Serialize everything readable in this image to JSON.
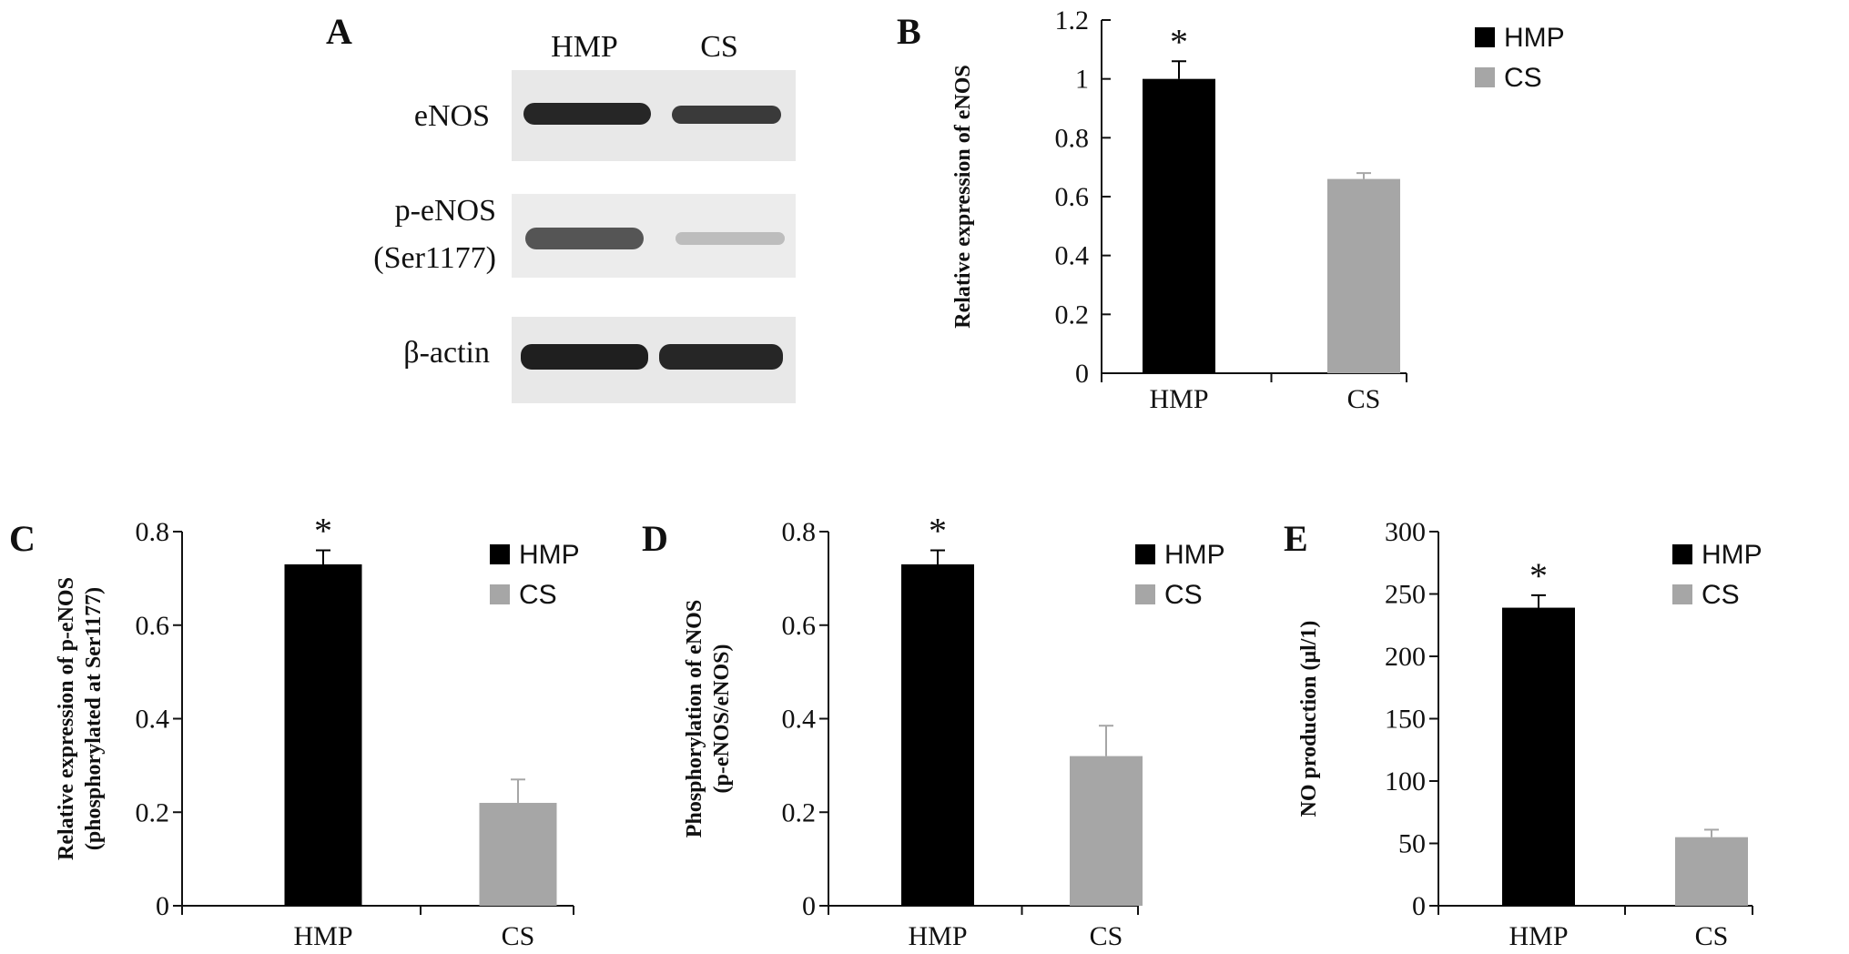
{
  "colors": {
    "hmp": "#000000",
    "cs": "#a6a6a6"
  },
  "panel_a": {
    "letter": "A",
    "lane_labels": [
      "HMP",
      "CS"
    ],
    "row_labels": [
      "eNOS",
      "p-eNOS",
      "(Ser1177)",
      "β-actin"
    ]
  },
  "chart_data": [
    {
      "type": "bar",
      "panel": "B",
      "categories": [
        "HMP",
        "CS"
      ],
      "values": [
        1.0,
        0.66
      ],
      "errors": [
        0.06,
        0.02
      ],
      "significance": [
        "*",
        ""
      ],
      "ylabel_lines": [
        "Relative expression of eNOS"
      ],
      "ylim": [
        0,
        1.2
      ],
      "yticks": [
        0,
        0.2,
        0.4,
        0.6,
        0.8,
        1,
        1.2
      ],
      "ytick_labels": [
        "0",
        "0.2",
        "0.4",
        "0.6",
        "0.8",
        "1",
        "1.2"
      ],
      "legend": [
        "HMP",
        "CS"
      ]
    },
    {
      "type": "bar",
      "panel": "C",
      "categories": [
        "HMP",
        "CS"
      ],
      "values": [
        0.73,
        0.22
      ],
      "errors": [
        0.03,
        0.05
      ],
      "significance": [
        "*",
        ""
      ],
      "ylabel_lines": [
        "Relative expression of p-eNOS",
        "(phosphorylated at Ser1177)"
      ],
      "ylim": [
        0,
        0.8
      ],
      "yticks": [
        0,
        0.2,
        0.4,
        0.6,
        0.8
      ],
      "ytick_labels": [
        "0",
        "0.2",
        "0.4",
        "0.6",
        "0.8"
      ],
      "legend": [
        "HMP",
        "CS"
      ]
    },
    {
      "type": "bar",
      "panel": "D",
      "categories": [
        "HMP",
        "CS"
      ],
      "values": [
        0.73,
        0.32
      ],
      "errors": [
        0.03,
        0.065
      ],
      "significance": [
        "*",
        ""
      ],
      "ylabel_lines": [
        "Phosphorylation of eNOS",
        "(p-eNOS/eNOS)"
      ],
      "ylim": [
        0,
        0.8
      ],
      "yticks": [
        0,
        0.2,
        0.4,
        0.6,
        0.8
      ],
      "ytick_labels": [
        "0",
        "0.2",
        "0.4",
        "0.6",
        "0.8"
      ],
      "legend": [
        "HMP",
        "CS"
      ]
    },
    {
      "type": "bar",
      "panel": "E",
      "categories": [
        "HMP",
        "CS"
      ],
      "values": [
        239,
        55
      ],
      "errors": [
        10,
        6
      ],
      "significance": [
        "*",
        ""
      ],
      "ylabel_lines": [
        "NO production (μl/1)"
      ],
      "ylim": [
        0,
        300
      ],
      "yticks": [
        0,
        50,
        100,
        150,
        200,
        250,
        300
      ],
      "ytick_labels": [
        "0",
        "50",
        "100",
        "150",
        "200",
        "250",
        "300"
      ],
      "legend": [
        "HMP",
        "CS"
      ]
    }
  ]
}
